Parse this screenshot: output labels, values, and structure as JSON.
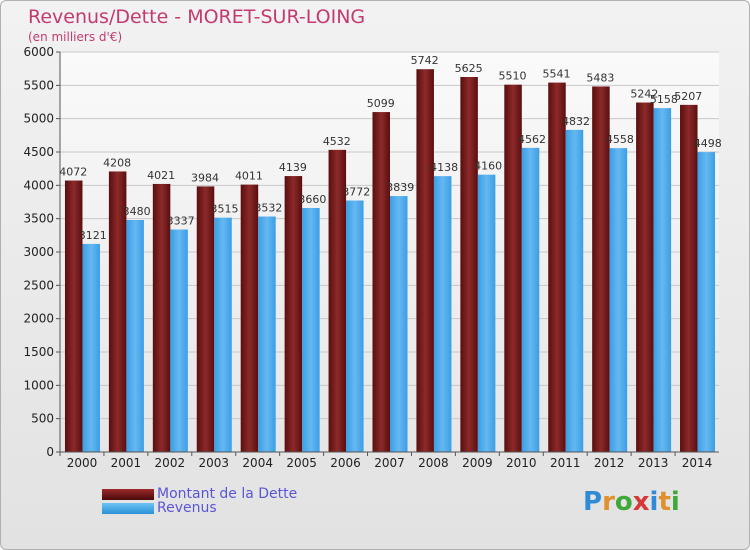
{
  "colors": {
    "title": "#c43a6e",
    "debt": "#7b1818",
    "revenue": "#3d9fe0",
    "legend_text": "#5a56d6"
  },
  "logo": {
    "text": "Proxiti",
    "letter_colors": [
      "#2e8bd6",
      "#e0902c",
      "#40a838",
      "#d63838",
      "#2e8bd6",
      "#e0902c",
      "#40a838"
    ]
  },
  "chart_data": {
    "type": "bar",
    "title": "Revenus/Dette - MORET-SUR-LOING",
    "subtitle": "(en milliers d'€)",
    "xlabel": "",
    "ylabel": "",
    "ylim": [
      0,
      6000
    ],
    "yticks": [
      0,
      500,
      1000,
      1500,
      2000,
      2500,
      3000,
      3500,
      4000,
      4500,
      5000,
      5500,
      6000
    ],
    "grid": true,
    "legend_position": "bottom-left",
    "categories": [
      "2000",
      "2001",
      "2002",
      "2003",
      "2004",
      "2005",
      "2006",
      "2007",
      "2008",
      "2009",
      "2010",
      "2011",
      "2012",
      "2013",
      "2014"
    ],
    "series": [
      {
        "name": "Montant de la Dette",
        "values": [
          4072,
          4208,
          4021,
          3984,
          4011,
          4139,
          4532,
          5099,
          5742,
          5625,
          5510,
          5541,
          5483,
          5242,
          5207
        ]
      },
      {
        "name": "Revenus",
        "values": [
          3121,
          3480,
          3337,
          3515,
          3532,
          3660,
          3772,
          3839,
          4138,
          4160,
          4562,
          4832,
          4558,
          5158,
          4498
        ]
      }
    ]
  }
}
